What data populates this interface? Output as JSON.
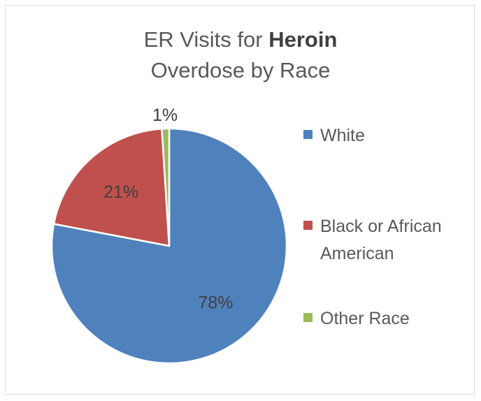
{
  "chart_data": {
    "type": "pie",
    "title_line1_prefix": "ER Visits for ",
    "title_line1_bold": "Heroin",
    "title_line2": "Overdose by Race",
    "categories": [
      "White",
      "Black or African American",
      "Other Race"
    ],
    "values": [
      78,
      21,
      1
    ],
    "data_labels": [
      "78%",
      "21%",
      "1%"
    ],
    "colors": [
      "#4f81bd",
      "#c0504d",
      "#9bbb59"
    ],
    "legend": {
      "position": "right",
      "entries": [
        {
          "lines": [
            "White"
          ]
        },
        {
          "lines": [
            "Black or African",
            "American"
          ]
        },
        {
          "lines": [
            "Other Race"
          ]
        }
      ]
    }
  }
}
